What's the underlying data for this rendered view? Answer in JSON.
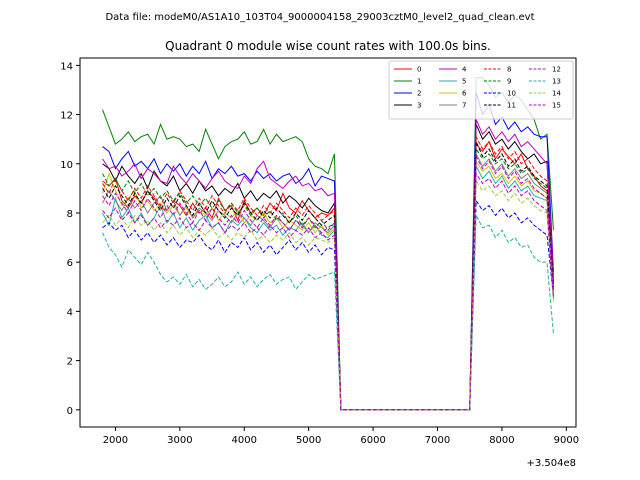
{
  "figure": {
    "suptitle": "Data file: modeM0/AS1A10_103T04_9000004158_29003cztM0_level2_quad_clean.evt"
  },
  "chart_data": {
    "type": "line",
    "title": "Quadrant 0 module wise count rates with 100.0s bins.",
    "xlabel": "",
    "ylabel": "",
    "x_offset_label": "+3.504e8",
    "xlim": [
      1450,
      9150
    ],
    "ylim": [
      -0.7,
      14.3
    ],
    "x_ticks": [
      2000,
      3000,
      4000,
      5000,
      6000,
      7000,
      8000,
      9000
    ],
    "x_tick_labels": [
      "2000",
      "3000",
      "4000",
      "5000",
      "6000",
      "7000",
      "8000",
      "9000"
    ],
    "y_ticks": [
      0,
      2,
      4,
      6,
      8,
      10,
      12,
      14
    ],
    "y_tick_labels": [
      "0",
      "2",
      "4",
      "6",
      "8",
      "10",
      "12",
      "14"
    ],
    "legend_loc": "upper right",
    "segments": {
      "seg1_x": [
        1800,
        1900,
        2000,
        2100,
        2200,
        2300,
        2400,
        2500,
        2600,
        2700,
        2800,
        2900,
        3000,
        3100,
        3200,
        3300,
        3400,
        3500,
        3600,
        3700,
        3800,
        3900,
        4000,
        4100,
        4200,
        4300,
        4400,
        4500,
        4600,
        4700,
        4800,
        4900,
        5000,
        5100,
        5200,
        5300,
        5400
      ],
      "gap_x": [
        5500,
        5600,
        5700,
        5800,
        5900,
        6000,
        6100,
        6200,
        6300,
        6400,
        6500,
        6600,
        6700,
        6800,
        6900,
        7000,
        7100,
        7200,
        7300,
        7400,
        7500
      ],
      "seg2_x": [
        7600,
        7700,
        7800,
        7900,
        8000,
        8100,
        8200,
        8300,
        8400,
        8500,
        8600,
        8700
      ],
      "end_x": 8800
    },
    "series": [
      {
        "name": "0",
        "color": "#ff0000",
        "dash": "solid",
        "seg1": [
          9.3,
          9.1,
          9.4,
          8.5,
          8.2,
          8.7,
          8.4,
          8.9,
          8.6,
          8.2,
          8.1,
          8.5,
          8.3,
          7.9,
          8.4,
          8.0,
          8.2,
          7.8,
          8.6,
          8.1,
          8.3,
          7.7,
          8.5,
          8.0,
          8.2,
          7.9,
          8.4,
          8.1,
          8.8,
          8.2,
          8.0,
          8.5,
          8.1,
          7.8,
          8.0,
          7.9,
          8.2
        ],
        "seg2": [
          10.8,
          10.5,
          10.9,
          10.2,
          10.6,
          10.3,
          10.0,
          10.4,
          9.8,
          9.5,
          9.1,
          8.9
        ],
        "end": 5.3
      },
      {
        "name": "1",
        "color": "#008000",
        "dash": "solid",
        "seg1": [
          12.2,
          11.5,
          10.8,
          11.0,
          11.3,
          10.9,
          11.1,
          11.2,
          10.8,
          11.6,
          11.0,
          11.1,
          11.0,
          10.7,
          10.8,
          10.5,
          11.4,
          10.8,
          10.2,
          10.7,
          10.9,
          11.0,
          11.3,
          10.8,
          10.9,
          11.4,
          10.8,
          11.2,
          10.9,
          11.0,
          11.1,
          10.9,
          10.2,
          9.9,
          9.8,
          9.6,
          10.4
        ],
        "seg2": [
          13.5,
          13.5,
          13.2,
          12.7,
          12.9,
          12.5,
          12.8,
          12.6,
          12.2,
          11.8,
          11.0,
          11.2
        ],
        "end": 7.3
      },
      {
        "name": "2",
        "color": "#0000ff",
        "dash": "solid",
        "seg1": [
          10.7,
          10.5,
          9.8,
          10.2,
          10.5,
          9.9,
          10.1,
          9.8,
          10.2,
          9.6,
          10.0,
          9.7,
          10.0,
          9.5,
          9.9,
          9.6,
          10.1,
          9.4,
          9.8,
          9.6,
          9.9,
          9.5,
          9.6,
          9.3,
          9.7,
          9.4,
          9.6,
          9.3,
          9.5,
          9.6,
          9.2,
          9.4,
          9.8,
          9.1,
          9.5,
          9.4,
          9.3
        ],
        "seg2": [
          12.9,
          12.0,
          12.4,
          11.6,
          11.9,
          11.4,
          11.7,
          11.3,
          11.5,
          11.2,
          11.1,
          11.1
        ],
        "end": 5.6
      },
      {
        "name": "3",
        "color": "#000000",
        "dash": "solid",
        "seg1": [
          10.0,
          9.8,
          9.3,
          9.9,
          9.5,
          9.2,
          9.6,
          9.0,
          9.7,
          9.3,
          9.1,
          9.5,
          8.9,
          9.2,
          8.8,
          9.3,
          8.9,
          9.1,
          8.7,
          9.0,
          8.8,
          9.2,
          8.6,
          8.9,
          8.5,
          8.8,
          8.6,
          8.9,
          8.4,
          8.7,
          8.5,
          8.2,
          8.6,
          8.3,
          8.1,
          8.0,
          8.4
        ],
        "seg2": [
          11.6,
          11.0,
          11.3,
          10.8,
          11.0,
          10.6,
          10.9,
          10.5,
          10.2,
          10.4,
          10.0,
          10.1
        ],
        "end": 5.0
      },
      {
        "name": "4",
        "color": "#c000c0",
        "dash": "solid",
        "seg1": [
          10.2,
          9.8,
          9.9,
          9.5,
          9.7,
          10.0,
          9.4,
          9.8,
          9.6,
          9.3,
          9.2,
          9.9,
          9.5,
          9.2,
          9.6,
          9.3,
          9.0,
          9.4,
          9.7,
          9.3,
          9.1,
          9.0,
          9.5,
          9.2,
          9.8,
          10.1,
          9.4,
          9.2,
          9.0,
          9.3,
          9.5,
          9.1,
          9.2,
          8.9,
          9.0,
          8.7,
          8.8
        ],
        "seg2": [
          11.8,
          11.2,
          11.5,
          11.0,
          11.3,
          10.9,
          11.2,
          10.7,
          10.9,
          10.6,
          10.3,
          10.0
        ],
        "end": 5.5
      },
      {
        "name": "5",
        "color": "#20b2aa",
        "dash": "solid",
        "seg1": [
          8.0,
          7.5,
          8.6,
          7.8,
          8.2,
          7.6,
          8.0,
          7.5,
          7.8,
          8.3,
          7.6,
          8.0,
          7.4,
          7.8,
          7.3,
          7.7,
          7.9,
          7.4,
          7.6,
          7.2,
          7.7,
          7.5,
          7.8,
          7.4,
          7.2,
          7.6,
          7.3,
          7.5,
          7.1,
          7.4,
          7.3,
          7.6,
          7.2,
          7.5,
          7.1,
          7.0,
          7.3
        ],
        "seg2": [
          9.9,
          9.4,
          9.7,
          9.2,
          9.5,
          9.0,
          9.3,
          8.9,
          9.1,
          8.7,
          8.6,
          8.5
        ],
        "end": 4.5
      },
      {
        "name": "6",
        "color": "#d4c000",
        "dash": "solid",
        "seg1": [
          8.8,
          9.6,
          8.9,
          8.3,
          8.6,
          8.9,
          8.2,
          8.5,
          8.1,
          8.4,
          8.0,
          8.3,
          7.9,
          8.2,
          7.8,
          8.1,
          7.9,
          8.2,
          7.7,
          8.0,
          7.8,
          8.1,
          7.6,
          7.9,
          7.7,
          8.0,
          7.6,
          7.8,
          7.4,
          7.7,
          7.5,
          7.3,
          7.6,
          7.2,
          7.5,
          7.1,
          7.4
        ],
        "seg2": [
          10.1,
          9.7,
          9.9,
          9.4,
          9.6,
          9.2,
          9.5,
          9.1,
          9.3,
          8.9,
          8.8,
          8.6
        ],
        "end": 4.8
      },
      {
        "name": "7",
        "color": "#808080",
        "dash": "solid",
        "seg1": [
          8.4,
          8.9,
          8.5,
          8.1,
          8.6,
          8.2,
          8.5,
          8.0,
          8.4,
          8.7,
          8.1,
          8.5,
          7.9,
          8.3,
          7.8,
          8.2,
          8.0,
          7.7,
          8.1,
          7.9,
          7.6,
          8.0,
          7.8,
          7.5,
          7.9,
          7.7,
          7.4,
          7.8,
          7.6,
          7.3,
          7.7,
          7.5,
          7.2,
          7.6,
          7.4,
          7.2,
          7.5
        ],
        "seg2": [
          10.4,
          9.9,
          10.2,
          9.7,
          10.0,
          9.5,
          9.8,
          9.4,
          9.6,
          9.2,
          9.0,
          8.8
        ],
        "end": 4.9
      },
      {
        "name": "8",
        "color": "#ff0000",
        "dash": "dashed",
        "seg1": [
          9.2,
          8.8,
          9.4,
          8.9,
          8.5,
          9.0,
          8.6,
          9.1,
          8.7,
          8.3,
          8.8,
          8.4,
          8.9,
          8.5,
          8.1,
          8.6,
          8.2,
          8.7,
          8.3,
          8.0,
          8.4,
          8.1,
          8.6,
          8.2,
          7.9,
          8.3,
          8.0,
          8.4,
          8.1,
          7.8,
          8.2,
          7.9,
          8.3,
          8.0,
          7.7,
          7.9,
          8.1
        ],
        "seg2": [
          11.1,
          10.6,
          10.9,
          10.4,
          10.7,
          10.2,
          10.5,
          10.0,
          10.2,
          9.8,
          9.5,
          9.3
        ],
        "end": 5.2
      },
      {
        "name": "9",
        "color": "#008000",
        "dash": "dashed",
        "seg1": [
          9.6,
          9.1,
          9.4,
          8.9,
          9.3,
          8.8,
          9.2,
          8.7,
          9.0,
          8.6,
          8.9,
          8.5,
          8.8,
          8.4,
          8.7,
          8.3,
          8.6,
          8.2,
          8.5,
          8.1,
          8.4,
          8.0,
          8.3,
          7.9,
          8.2,
          7.8,
          8.1,
          7.7,
          8.0,
          7.6,
          7.9,
          7.5,
          7.8,
          7.4,
          7.7,
          7.3,
          7.6
        ],
        "seg2": [
          10.6,
          10.2,
          10.4,
          10.0,
          10.2,
          9.8,
          10.0,
          9.6,
          9.8,
          9.4,
          9.2,
          9.0
        ],
        "end": 5.1
      },
      {
        "name": "10",
        "color": "#0000ff",
        "dash": "dashed",
        "seg1": [
          7.4,
          7.6,
          7.3,
          7.5,
          7.0,
          7.3,
          6.9,
          7.2,
          6.8,
          7.1,
          6.7,
          7.0,
          6.6,
          6.9,
          6.8,
          7.1,
          6.7,
          6.5,
          6.9,
          6.4,
          6.8,
          6.6,
          7.0,
          6.5,
          6.8,
          6.4,
          6.7,
          6.3,
          6.6,
          6.9,
          6.5,
          6.8,
          6.4,
          6.7,
          6.3,
          6.6,
          6.5
        ],
        "seg2": [
          8.5,
          8.1,
          8.3,
          7.9,
          8.2,
          7.8,
          8.0,
          7.6,
          7.8,
          7.5,
          7.3,
          7.1
        ],
        "end": 4.6
      },
      {
        "name": "11",
        "color": "#000000",
        "dash": "dashed",
        "seg1": [
          9.0,
          8.6,
          9.1,
          8.7,
          8.3,
          8.8,
          8.4,
          8.9,
          8.5,
          8.1,
          8.6,
          8.2,
          8.7,
          8.3,
          7.9,
          8.4,
          8.0,
          8.5,
          8.1,
          7.8,
          8.2,
          7.9,
          8.4,
          8.0,
          7.7,
          8.1,
          7.8,
          8.2,
          7.9,
          7.6,
          8.0,
          7.7,
          8.1,
          7.8,
          7.5,
          7.7,
          7.9
        ],
        "seg2": [
          10.9,
          10.3,
          10.6,
          10.1,
          10.4,
          9.9,
          10.2,
          9.7,
          9.9,
          9.5,
          9.3,
          9.1
        ],
        "end": 5.0
      },
      {
        "name": "12",
        "color": "#c000c0",
        "dash": "dashed",
        "seg1": [
          8.7,
          8.3,
          8.8,
          8.4,
          8.0,
          8.5,
          8.1,
          8.6,
          8.2,
          7.8,
          8.3,
          7.9,
          8.4,
          8.0,
          7.6,
          8.1,
          7.7,
          8.2,
          7.8,
          7.5,
          7.9,
          7.6,
          8.1,
          7.7,
          7.4,
          7.8,
          7.5,
          7.9,
          7.6,
          7.3,
          7.7,
          7.4,
          7.8,
          7.5,
          7.2,
          7.4,
          7.6
        ],
        "seg2": [
          10.3,
          9.8,
          10.1,
          9.6,
          9.9,
          9.4,
          9.7,
          9.2,
          9.4,
          9.0,
          8.8,
          8.6
        ],
        "end": 4.8
      },
      {
        "name": "13",
        "color": "#20b2aa",
        "dash": "dashed",
        "seg1": [
          7.2,
          6.6,
          6.3,
          5.8,
          6.5,
          6.2,
          5.9,
          6.4,
          6.0,
          5.5,
          5.2,
          5.4,
          5.1,
          5.5,
          5.0,
          5.3,
          4.9,
          5.1,
          5.4,
          5.0,
          5.2,
          5.6,
          5.1,
          5.4,
          5.0,
          5.3,
          5.5,
          5.1,
          5.3,
          5.4,
          4.9,
          5.2,
          5.5,
          5.3,
          5.4,
          5.5,
          5.6
        ],
        "seg2": [
          7.9,
          7.4,
          7.5,
          7.0,
          7.3,
          6.8,
          7.0,
          6.6,
          6.7,
          6.2,
          6.0,
          6.0
        ],
        "end": 3.1
      },
      {
        "name": "14",
        "color": "#9acd32",
        "dash": "dashed",
        "seg1": [
          7.6,
          7.9,
          7.5,
          7.8,
          7.4,
          7.9,
          7.5,
          7.7,
          7.3,
          7.6,
          7.2,
          7.5,
          7.1,
          7.4,
          7.0,
          7.3,
          7.1,
          7.4,
          7.0,
          7.2,
          6.9,
          7.2,
          7.0,
          7.3,
          6.9,
          7.1,
          6.8,
          7.1,
          6.9,
          7.2,
          6.8,
          7.0,
          6.7,
          7.0,
          6.9,
          6.8,
          7.0
        ],
        "seg2": [
          9.3,
          8.9,
          9.1,
          8.7,
          8.9,
          8.5,
          8.8,
          8.4,
          8.6,
          8.3,
          8.1,
          8.0
        ],
        "end": 4.4
      },
      {
        "name": "15",
        "color": "#c000c0",
        "dash": "dashed",
        "seg1": [
          8.1,
          7.8,
          8.2,
          7.7,
          8.0,
          7.6,
          7.9,
          7.5,
          7.8,
          7.4,
          7.7,
          7.5,
          7.8,
          7.4,
          7.6,
          7.3,
          7.7,
          7.4,
          7.6,
          7.2,
          7.5,
          7.3,
          7.6,
          7.2,
          7.4,
          7.1,
          7.5,
          7.2,
          7.4,
          7.0,
          7.3,
          7.1,
          7.4,
          7.0,
          7.2,
          6.9,
          7.1
        ],
        "seg2": [
          9.6,
          9.2,
          9.4,
          9.0,
          9.3,
          8.8,
          9.1,
          8.7,
          8.9,
          8.5,
          8.3,
          8.1
        ],
        "end": 4.6
      }
    ]
  }
}
